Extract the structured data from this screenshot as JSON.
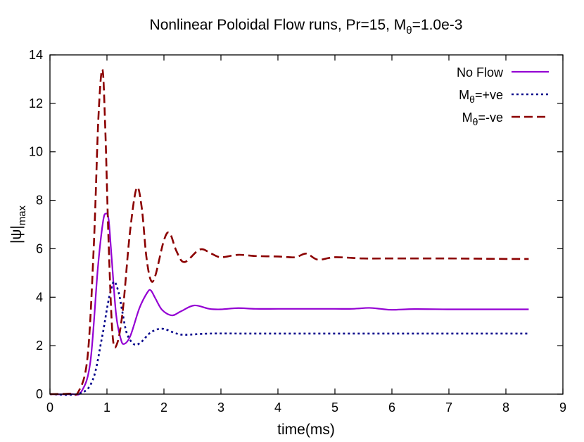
{
  "chart_data": {
    "type": "line",
    "title": "Nonlinear Poloidal Flow runs, Pr=15, M",
    "title_sub": "θ",
    "title_tail": "=1.0e-3",
    "xlabel": "time(ms)",
    "ylabel": "|ψ|",
    "ylabel_sub": "max",
    "xlim": [
      0,
      9
    ],
    "ylim": [
      0,
      14
    ],
    "xticks": [
      0,
      1,
      2,
      3,
      4,
      5,
      6,
      7,
      8,
      9
    ],
    "yticks": [
      0,
      2,
      4,
      6,
      8,
      10,
      12,
      14
    ],
    "grid": false,
    "legend_position": "top-right",
    "series": [
      {
        "name": "No Flow",
        "name_main": "No Flow",
        "name_sub": "",
        "name_tail": "",
        "color": "#9400d3",
        "dash": "solid",
        "x": [
          0,
          0.37,
          0.55,
          0.71,
          0.84,
          0.93,
          0.98,
          1.03,
          1.08,
          1.16,
          1.24,
          1.3,
          1.41,
          1.57,
          1.71,
          1.77,
          1.85,
          1.97,
          2.14,
          2.3,
          2.53,
          2.8,
          3.0,
          3.3,
          3.6,
          4.0,
          4.5,
          5.0,
          5.3,
          5.6,
          5.8,
          6.0,
          6.4,
          7.0,
          7.5,
          8.0,
          8.4
        ],
        "y": [
          0,
          0,
          0.1,
          1.35,
          5.2,
          7.1,
          7.45,
          7.2,
          5.7,
          3.3,
          2.3,
          2.07,
          2.4,
          3.55,
          4.2,
          4.28,
          3.95,
          3.47,
          3.25,
          3.42,
          3.66,
          3.52,
          3.5,
          3.55,
          3.52,
          3.52,
          3.52,
          3.52,
          3.52,
          3.56,
          3.52,
          3.48,
          3.51,
          3.5,
          3.5,
          3.5,
          3.5
        ]
      },
      {
        "name": "Mθ=+ve",
        "name_main": "M",
        "name_sub": "θ",
        "name_tail": "=+ve",
        "color": "#00008b",
        "dash": "dotted",
        "x": [
          0,
          0.51,
          0.75,
          0.91,
          1.01,
          1.07,
          1.13,
          1.21,
          1.27,
          1.35,
          1.48,
          1.6,
          1.77,
          1.97,
          2.22,
          2.38,
          2.8,
          3.5,
          4.5,
          5.5,
          6.5,
          7.5,
          8.4
        ],
        "y": [
          0,
          0.02,
          0.58,
          2.3,
          3.65,
          4.3,
          4.65,
          4.15,
          3.4,
          2.5,
          2.05,
          2.15,
          2.55,
          2.7,
          2.5,
          2.45,
          2.5,
          2.5,
          2.5,
          2.5,
          2.5,
          2.5,
          2.5
        ]
      },
      {
        "name": "Mθ=-ve",
        "name_main": "M",
        "name_sub": "θ",
        "name_tail": "=-ve",
        "color": "#8b0000",
        "dash": "dashed",
        "x": [
          0,
          0.34,
          0.5,
          0.66,
          0.77,
          0.85,
          0.92,
          0.97,
          1.03,
          1.1,
          1.18,
          1.28,
          1.4,
          1.52,
          1.61,
          1.69,
          1.77,
          1.85,
          2.0,
          2.1,
          2.22,
          2.36,
          2.63,
          2.83,
          3.0,
          3.3,
          3.6,
          4.0,
          4.3,
          4.5,
          4.7,
          5.0,
          5.5,
          6.0,
          7.0,
          8.0,
          8.4
        ],
        "y": [
          0,
          0.02,
          0.1,
          1.54,
          6.16,
          11.4,
          13.4,
          11,
          6.2,
          2.4,
          2.1,
          3.5,
          6.6,
          8.5,
          7.7,
          5.7,
          4.7,
          4.9,
          6.35,
          6.65,
          5.9,
          5.45,
          5.97,
          5.8,
          5.65,
          5.75,
          5.7,
          5.68,
          5.65,
          5.8,
          5.55,
          5.65,
          5.6,
          5.6,
          5.6,
          5.58,
          5.58
        ]
      }
    ]
  }
}
